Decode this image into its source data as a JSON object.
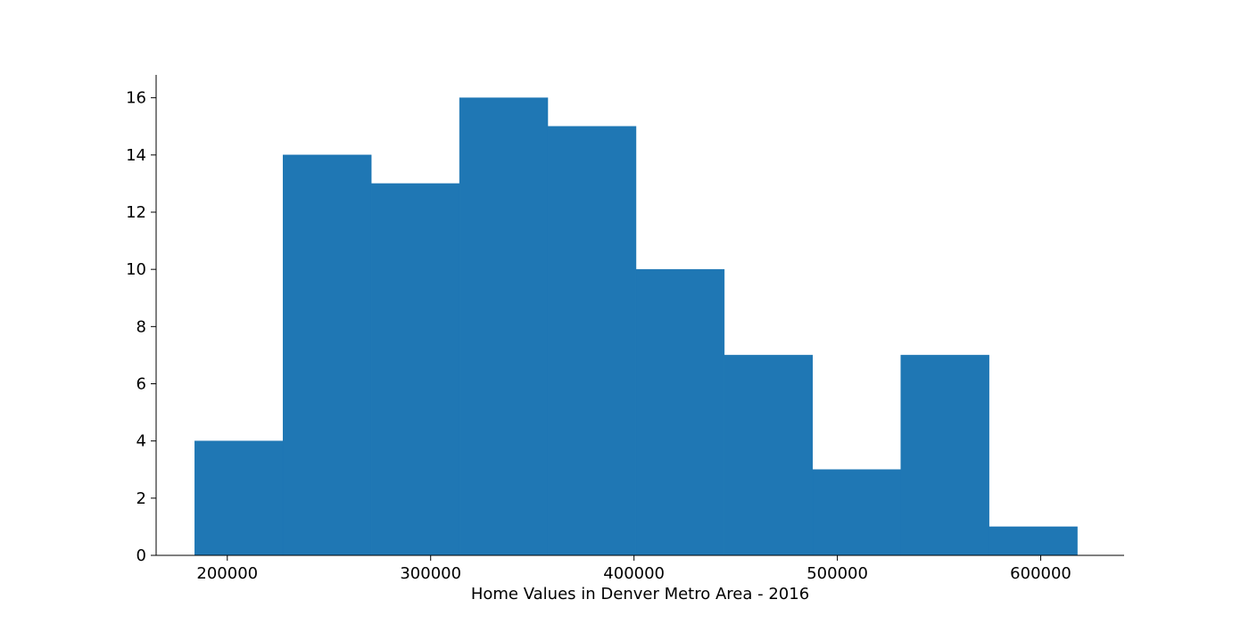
{
  "chart_data": {
    "type": "bar",
    "subtype": "histogram",
    "title": "",
    "xlabel": "Home Values in Denver Metro Area - 2016",
    "ylabel": "",
    "bin_edges": [
      184000,
      227400,
      270800,
      314200,
      357600,
      401000,
      444400,
      487800,
      531200,
      574600,
      618000
    ],
    "values": [
      4,
      14,
      13,
      16,
      15,
      10,
      7,
      3,
      7,
      1
    ],
    "xlim": [
      165000,
      641000
    ],
    "ylim": [
      0,
      16.8
    ],
    "xticks": [
      200000,
      300000,
      400000,
      500000,
      600000
    ],
    "yticks": [
      0,
      2,
      4,
      6,
      8,
      10,
      12,
      14,
      16
    ],
    "bar_color": "#1f77b4",
    "grid": false,
    "legend": "none",
    "spines": [
      "left",
      "bottom"
    ]
  }
}
